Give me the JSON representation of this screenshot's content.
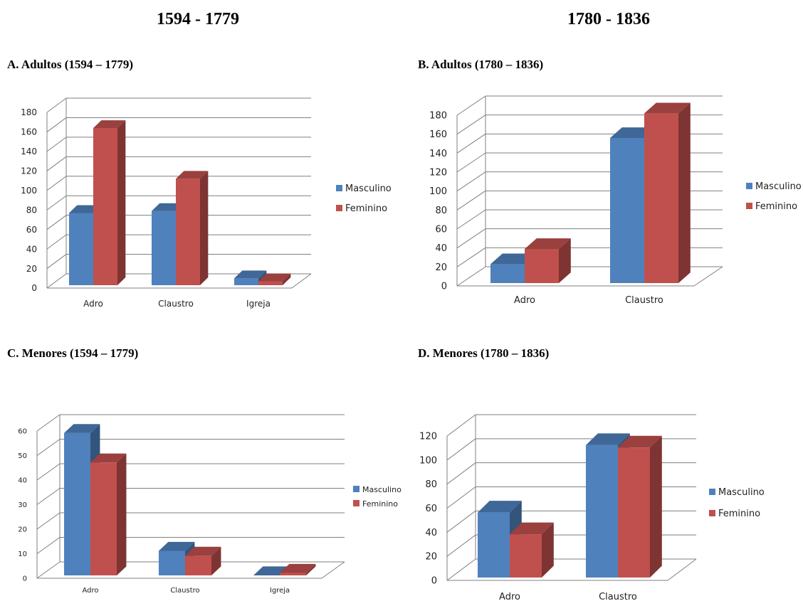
{
  "headings": {
    "left": "1594 - 1779",
    "right": "1780 - 1836"
  },
  "colors": {
    "masculino": "#4f81bd",
    "feminino": "#c0504d"
  },
  "chart_data": [
    {
      "type": "bar",
      "title": "A. Adultos (1594 – 1779)",
      "categories": [
        "Adro",
        "Claustro",
        "Igreja"
      ],
      "series": [
        {
          "name": "Masculino",
          "values": [
            74,
            76,
            7
          ]
        },
        {
          "name": "Feminino",
          "values": [
            161,
            109,
            4
          ]
        }
      ],
      "yticks": [
        "0",
        "20",
        "40",
        "60",
        "80",
        "100",
        "120",
        "140",
        "160",
        "180"
      ],
      "ylim": [
        0,
        180
      ],
      "grid": true,
      "legend": "right"
    },
    {
      "type": "bar",
      "title": "B. Adultos (1780 – 1836)",
      "categories": [
        "Adro",
        "Claustro"
      ],
      "series": [
        {
          "name": "Masculino",
          "values": [
            20,
            153
          ]
        },
        {
          "name": "Feminino",
          "values": [
            36,
            179
          ]
        }
      ],
      "yticks": [
        "0",
        "20",
        "40",
        "60",
        "80",
        "100",
        "120",
        "140",
        "160",
        "180"
      ],
      "ylim": [
        0,
        180
      ],
      "grid": true,
      "legend": "right"
    },
    {
      "type": "bar",
      "title": "C. Menores (1594 – 1779)",
      "categories": [
        "Adro",
        "Claustro",
        "Igreja"
      ],
      "series": [
        {
          "name": "Masculino",
          "values": [
            58,
            10,
            0
          ]
        },
        {
          "name": "Feminino",
          "values": [
            46,
            8,
            1
          ]
        }
      ],
      "yticks": [
        "0",
        "10",
        "20",
        "30",
        "40",
        "50",
        "60"
      ],
      "ylim": [
        0,
        60
      ],
      "grid": true,
      "legend": "right"
    },
    {
      "type": "bar",
      "title": "D. Menores (1780 – 1836)",
      "categories": [
        "Adro",
        "Claustro"
      ],
      "series": [
        {
          "name": "Masculino",
          "values": [
            54,
            110
          ]
        },
        {
          "name": "Feminino",
          "values": [
            36,
            108
          ]
        }
      ],
      "yticks": [
        "0",
        "20",
        "40",
        "60",
        "80",
        "100",
        "120"
      ],
      "ylim": [
        0,
        120
      ],
      "grid": true,
      "legend": "right"
    }
  ]
}
